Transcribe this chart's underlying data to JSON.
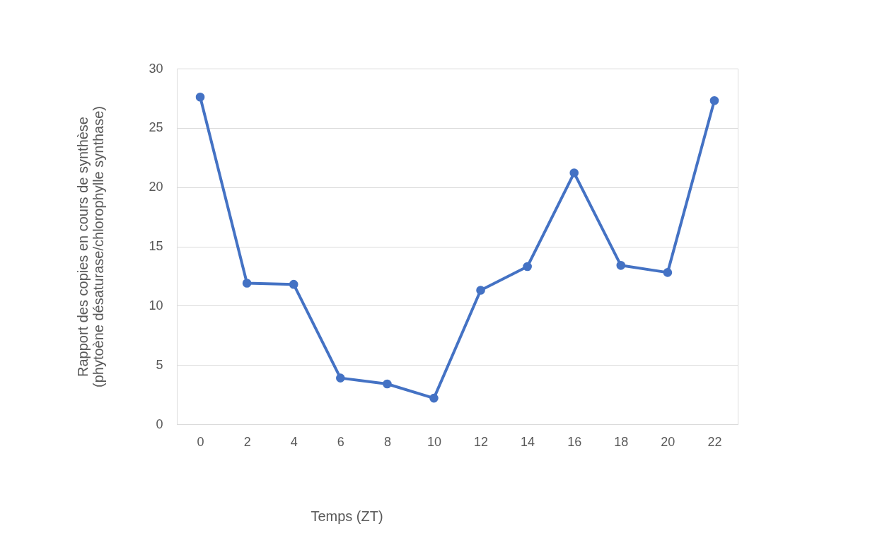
{
  "chart_data": {
    "type": "line",
    "xlabel": "Temps (ZT)",
    "ylabel": "Rapport des copies en cours de synthèse\n(phytoène désaturase/chlorophylle synthase)",
    "categories": [
      "0",
      "2",
      "4",
      "6",
      "8",
      "10",
      "12",
      "14",
      "16",
      "18",
      "20",
      "22"
    ],
    "series": [
      {
        "color": "#4472c4",
        "values": [
          27.6,
          11.9,
          11.8,
          3.9,
          3.4,
          2.2,
          11.3,
          13.3,
          21.2,
          13.4,
          12.8,
          27.3
        ]
      }
    ],
    "ylim": [
      0,
      30
    ],
    "yticks": [
      0,
      5,
      10,
      15,
      20,
      25,
      30
    ],
    "grid": "y",
    "legend": false,
    "marker": "circle",
    "line_style": "solid"
  }
}
